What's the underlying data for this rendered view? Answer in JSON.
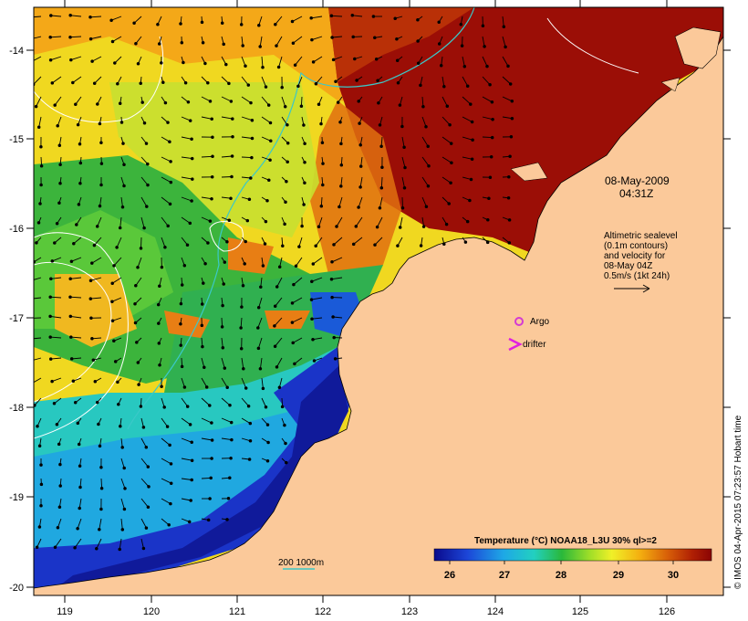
{
  "map": {
    "x_ticks": [
      "119",
      "120",
      "121",
      "122",
      "123",
      "124",
      "125",
      "126"
    ],
    "y_ticks": [
      "-14",
      "-15",
      "-16",
      "-17",
      "-18",
      "-19",
      "-20"
    ],
    "date_line1": "08-May-2009",
    "date_line2": "04:31Z",
    "altimetry_lines": [
      "Altimetric sealevel",
      "(0.1m contours)",
      "and velocity for",
      "08-May 04Z",
      "0.5m/s (1kt 24h)"
    ],
    "argo_label": "Argo",
    "drifter_label": "drifter",
    "depth_label": "200  1000m",
    "credit": "© IMOS 04-Apr-2015 07:23:57 Hobart time",
    "colorbar_title": "Temperature (°C) NOAA18_L3U 30% ql>=2",
    "colorbar_ticks": [
      "26",
      "27",
      "28",
      "29",
      "30"
    ],
    "colors": {
      "land": "#fbc99a",
      "warm": "#9b0e06",
      "cool": "#101a9a",
      "contour": "#ffffff",
      "bathymetry": "#3bc8c8",
      "argo": "#d43ad4",
      "drifter": "#e020e0"
    }
  }
}
